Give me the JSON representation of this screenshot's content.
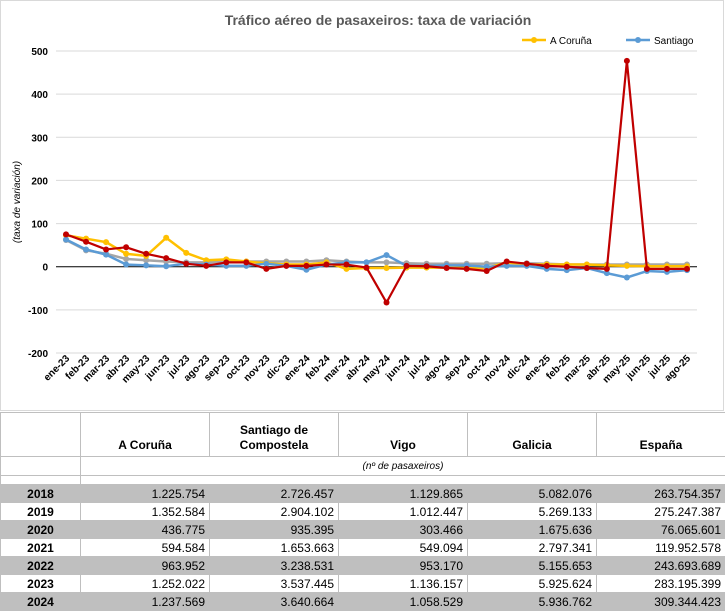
{
  "chart_data": {
    "type": "line",
    "title": "Tráfico aéreo de pasaxeiros: taxa de variación",
    "ylabel": "(taxa de variación)",
    "ylim": [
      -200,
      500
    ],
    "yticks": [
      -200,
      -100,
      0,
      100,
      200,
      300,
      400,
      500
    ],
    "grid": true,
    "legend_position": "top-right",
    "categories": [
      "ene-23",
      "feb-23",
      "mar-23",
      "abr-23",
      "may-23",
      "jun-23",
      "jul-23",
      "ago-23",
      "sep-23",
      "oct-23",
      "nov-23",
      "dic-23",
      "ene-24",
      "feb-24",
      "mar-24",
      "abr-24",
      "may-24",
      "jun-24",
      "jul-24",
      "ago-24",
      "sep-24",
      "oct-24",
      "nov-24",
      "dic-24",
      "ene-25",
      "feb-25",
      "mar-25",
      "abr-25",
      "may-25",
      "jun-25",
      "jul-25",
      "ago-25"
    ],
    "series": [
      {
        "name": "A Coruña",
        "color": "#ffc000",
        "legend": true,
        "values": [
          73,
          65,
          57,
          30,
          25,
          67,
          32,
          15,
          17,
          12,
          8,
          5,
          5,
          10,
          -5,
          -3,
          -3,
          -2,
          -2,
          -2,
          -3,
          -3,
          10,
          5,
          5,
          5,
          5,
          3,
          2,
          1,
          1,
          1
        ]
      },
      {
        "name": "Santiago",
        "color": "#5b9bd5",
        "legend": true,
        "values": [
          63,
          40,
          28,
          5,
          3,
          1,
          7,
          5,
          2,
          2,
          7,
          2,
          -7,
          5,
          10,
          10,
          27,
          2,
          2,
          3,
          3,
          0,
          2,
          2,
          -5,
          -8,
          -3,
          -15,
          -25,
          -10,
          -12,
          -8
        ]
      },
      {
        "name": "",
        "color": "#c00000",
        "legend": false,
        "values": [
          75,
          58,
          40,
          45,
          30,
          20,
          7,
          2,
          10,
          10,
          -5,
          2,
          2,
          5,
          5,
          -2,
          -83,
          2,
          1,
          -3,
          -5,
          -10,
          12,
          7,
          2,
          0,
          -3,
          -5,
          477,
          -5,
          -5,
          -5
        ]
      },
      {
        "name": "",
        "color": "#a6a6a6",
        "legend": false,
        "values": [
          62,
          38,
          30,
          18,
          15,
          12,
          10,
          10,
          12,
          12,
          12,
          12,
          12,
          15,
          12,
          10,
          10,
          8,
          7,
          7,
          7,
          7,
          8,
          8,
          7,
          5,
          5,
          5,
          5,
          5,
          5,
          5
        ]
      }
    ]
  },
  "table": {
    "headers": [
      "",
      "A Coruña",
      "Santiago de Compostela",
      "Vigo",
      "Galicia",
      "España"
    ],
    "unit_note": "(nº de pasaxeiros)",
    "rows": [
      {
        "year": "2018",
        "values": [
          "1.225.754",
          "2.726.457",
          "1.129.865",
          "5.082.076",
          "263.754.357"
        ]
      },
      {
        "year": "2019",
        "values": [
          "1.352.584",
          "2.904.102",
          "1.012.447",
          "5.269.133",
          "275.247.387"
        ]
      },
      {
        "year": "2020",
        "values": [
          "436.775",
          "935.395",
          "303.466",
          "1.675.636",
          "76.065.601"
        ]
      },
      {
        "year": "2021",
        "values": [
          "594.584",
          "1.653.663",
          "549.094",
          "2.797.341",
          "119.952.578"
        ]
      },
      {
        "year": "2022",
        "values": [
          "963.952",
          "3.238.531",
          "953.170",
          "5.155.653",
          "243.693.689"
        ]
      },
      {
        "year": "2023",
        "values": [
          "1.252.022",
          "3.537.445",
          "1.136.157",
          "5.925.624",
          "283.195.399"
        ]
      },
      {
        "year": "2024",
        "values": [
          "1.237.569",
          "3.640.664",
          "1.058.529",
          "5.936.762",
          "309.344.423"
        ]
      }
    ]
  }
}
